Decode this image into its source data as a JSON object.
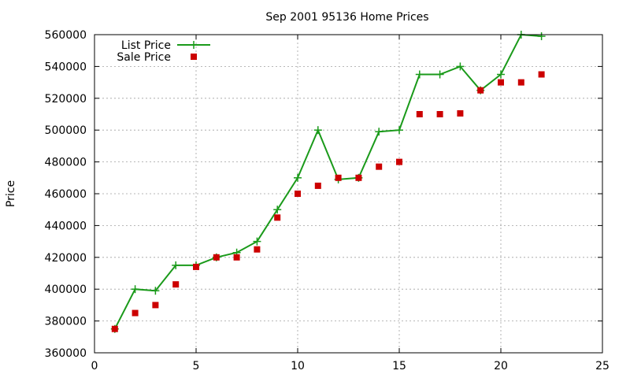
{
  "chart_data": {
    "type": "line",
    "title": "Sep 2001 95136 Home Prices",
    "xlabel": "",
    "ylabel": "Price",
    "xlim": [
      0,
      25
    ],
    "ylim": [
      360000,
      560000
    ],
    "xticks": [
      0,
      5,
      10,
      15,
      20,
      25
    ],
    "yticks": [
      360000,
      380000,
      400000,
      420000,
      440000,
      460000,
      480000,
      500000,
      520000,
      540000,
      560000
    ],
    "grid": true,
    "legend_position": "top-left",
    "series": [
      {
        "name": "List Price",
        "style": "line-with-plus-markers",
        "color": "#1a9a1a",
        "points": [
          [
            1,
            375000
          ],
          [
            2,
            400000
          ],
          [
            3,
            399000
          ],
          [
            4,
            415000
          ],
          [
            5,
            415000
          ],
          [
            6,
            420000
          ],
          [
            7,
            423000
          ],
          [
            8,
            430000
          ],
          [
            9,
            450000
          ],
          [
            10,
            470000
          ],
          [
            11,
            500000
          ],
          [
            12,
            469000
          ],
          [
            13,
            470000
          ],
          [
            14,
            499000
          ],
          [
            15,
            500000
          ],
          [
            16,
            535000
          ],
          [
            17,
            535000
          ],
          [
            18,
            540000
          ],
          [
            19,
            525000
          ],
          [
            20,
            535000
          ],
          [
            21,
            560000
          ],
          [
            22,
            559000
          ]
        ]
      },
      {
        "name": "Sale Price",
        "style": "square-markers",
        "color": "#cc0000",
        "points": [
          [
            1,
            375000
          ],
          [
            2,
            385000
          ],
          [
            3,
            390000
          ],
          [
            4,
            403000
          ],
          [
            5,
            414000
          ],
          [
            6,
            420000
          ],
          [
            7,
            420000
          ],
          [
            8,
            425000
          ],
          [
            9,
            445000
          ],
          [
            10,
            460000
          ],
          [
            11,
            465000
          ],
          [
            12,
            470000
          ],
          [
            13,
            470000
          ],
          [
            14,
            477000
          ],
          [
            15,
            480000
          ],
          [
            16,
            510000
          ],
          [
            17,
            510000
          ],
          [
            18,
            510500
          ],
          [
            19,
            525000
          ],
          [
            20,
            530000
          ],
          [
            21,
            530000
          ],
          [
            22,
            535000
          ]
        ]
      }
    ]
  }
}
